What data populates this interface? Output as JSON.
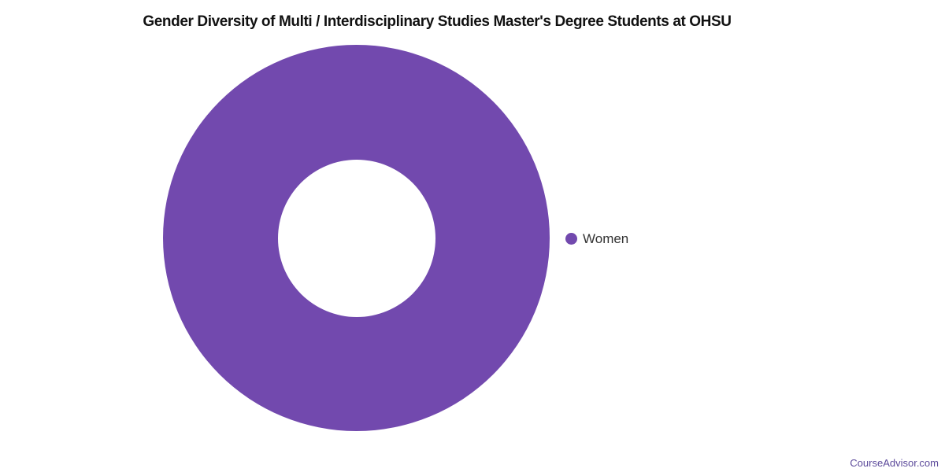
{
  "title": "Gender Diversity of Multi / Interdisciplinary Studies Master's Degree Students at OHSU",
  "watermark": "CourseAdvisor.com",
  "colors": {
    "series": "#7249AE",
    "title": "#111111",
    "legend_text": "#333333",
    "watermark": "#5C4A9B",
    "background": "#FFFFFF"
  },
  "legend": {
    "position": "right",
    "items": [
      {
        "label": "Women",
        "color": "#7249AE"
      }
    ]
  },
  "chart_data": {
    "type": "pie",
    "subtype": "donut",
    "categories": [
      "Women"
    ],
    "values": [
      100
    ],
    "title": "Gender Diversity of Multi / Interdisciplinary Studies Master's Degree Students at OHSU",
    "legend_position": "right",
    "inner_radius_ratio": 0.41,
    "series_color": "#7249AE",
    "annotations": [
      "CourseAdvisor.com"
    ]
  }
}
